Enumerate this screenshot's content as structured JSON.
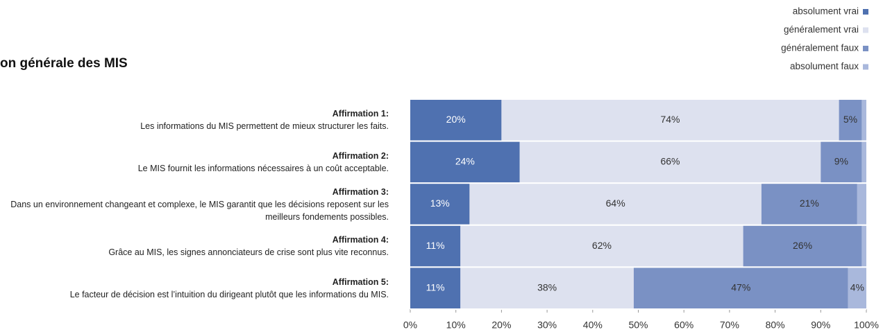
{
  "chart_data": {
    "type": "bar",
    "orientation": "horizontal",
    "stacked": true,
    "title": "on générale des MIS",
    "categories": [
      "Affirmation 1:",
      "Affirmation 2:",
      "Affirmation 3:",
      "Affirmation 4:",
      "Affirmation 5:"
    ],
    "category_descriptions": [
      "Les informations du MIS permettent de mieux structurer les faits.",
      "Le MIS fournit les informations nécessaires à un coût acceptable.",
      "Dans un environnement changeant et complexe, le MIS garantit que les décisions reposent sur les meilleurs fondements possibles.",
      "Grâce au MIS, les signes annonciateurs de crise sont plus vite reconnus.",
      "Le facteur de décision est l’intuition du dirigeant plutôt que les informations du MIS."
    ],
    "series": [
      {
        "name": "absolument vrai",
        "color": "#4f71b0",
        "values": [
          20,
          24,
          13,
          11,
          11
        ],
        "value_labels": [
          "20%",
          "24%",
          "13%",
          "11%",
          "11%"
        ]
      },
      {
        "name": "généralement vrai",
        "color": "#dde1ef",
        "values": [
          74,
          66,
          64,
          62,
          38
        ],
        "value_labels": [
          "74%",
          "66%",
          "64%",
          "62%",
          "38%"
        ]
      },
      {
        "name": "généralement faux",
        "color": "#7a91c4",
        "values": [
          5,
          9,
          21,
          26,
          47
        ],
        "value_labels": [
          "5%",
          "9%",
          "21%",
          "26%",
          "47%"
        ]
      },
      {
        "name": "absolument faux",
        "color": "#a9b8dc",
        "values": [
          1,
          1,
          2,
          1,
          4
        ],
        "value_labels": [
          null,
          null,
          null,
          null,
          "4%"
        ]
      }
    ],
    "xlim": [
      0,
      100
    ],
    "xticks": [
      {
        "value": 0,
        "label": "0%"
      },
      {
        "value": 10,
        "label": "10%"
      },
      {
        "value": 20,
        "label": "20%"
      },
      {
        "value": 30,
        "label": "30%"
      },
      {
        "value": 40,
        "label": "40%"
      },
      {
        "value": 50,
        "label": "50%"
      },
      {
        "value": 60,
        "label": "60%"
      },
      {
        "value": 70,
        "label": "70%"
      },
      {
        "value": 80,
        "label": "80%"
      },
      {
        "value": 90,
        "label": "90%"
      },
      {
        "value": 100,
        "label": "100%"
      }
    ],
    "legend": "top-right"
  }
}
